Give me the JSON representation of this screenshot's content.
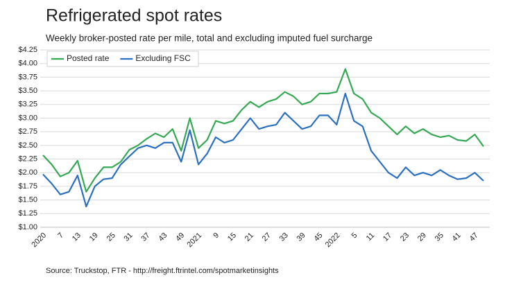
{
  "chart_data": {
    "type": "line",
    "title": "Refrigerated spot rates",
    "subtitle": "Weekly broker-posted rate per mile, total and excluding imputed fuel surcharge",
    "source": "Source: Truckstop, FTR - http://freight.ftrintel.com/spotmarketinsights",
    "categories": [
      "2020",
      null,
      "7",
      null,
      "13",
      null,
      "19",
      null,
      "25",
      null,
      "31",
      null,
      "37",
      null,
      "43",
      null,
      "49",
      null,
      "2021",
      null,
      "9",
      null,
      "15",
      null,
      "21",
      null,
      "27",
      null,
      "33",
      null,
      "39",
      null,
      "45",
      null,
      "2022",
      null,
      "5",
      null,
      "11",
      null,
      "17",
      null,
      "23",
      null,
      "29",
      null,
      "35",
      null,
      "41",
      null,
      "47",
      null
    ],
    "series": [
      {
        "name": "Posted rate",
        "color": "#34a853",
        "values": [
          2.32,
          2.15,
          1.93,
          2.0,
          2.22,
          1.65,
          1.9,
          2.1,
          2.1,
          2.2,
          2.42,
          2.5,
          2.62,
          2.72,
          2.65,
          2.8,
          2.4,
          3.0,
          2.45,
          2.6,
          2.95,
          2.9,
          2.95,
          3.15,
          3.3,
          3.2,
          3.3,
          3.35,
          3.48,
          3.4,
          3.25,
          3.3,
          3.45,
          3.45,
          3.48,
          3.9,
          3.45,
          3.35,
          3.1,
          3.0,
          2.85,
          2.7,
          2.85,
          2.72,
          2.8,
          2.7,
          2.65,
          2.68,
          2.6,
          2.58,
          2.7,
          2.48
        ]
      },
      {
        "name": "Excluding FSC",
        "color": "#2a6fc0",
        "values": [
          1.97,
          1.8,
          1.6,
          1.65,
          1.95,
          1.38,
          1.75,
          1.88,
          1.9,
          2.15,
          2.3,
          2.45,
          2.5,
          2.45,
          2.55,
          2.55,
          2.2,
          2.78,
          2.15,
          2.35,
          2.65,
          2.55,
          2.6,
          2.8,
          3.0,
          2.8,
          2.85,
          2.88,
          3.1,
          2.95,
          2.8,
          2.85,
          3.05,
          3.05,
          2.88,
          3.45,
          2.95,
          2.85,
          2.4,
          2.2,
          2.0,
          1.9,
          2.1,
          1.95,
          2.0,
          1.95,
          2.05,
          1.95,
          1.88,
          1.9,
          2.0,
          1.85
        ]
      }
    ],
    "ylim": [
      1.0,
      4.25
    ],
    "yticks": [
      {
        "value": 1.0,
        "label": "$1.00"
      },
      {
        "value": 1.25,
        "label": "$1.25"
      },
      {
        "value": 1.5,
        "label": "$1.50"
      },
      {
        "value": 1.75,
        "label": "$1.75"
      },
      {
        "value": 2.0,
        "label": "$2.00"
      },
      {
        "value": 2.25,
        "label": "$2.25"
      },
      {
        "value": 2.5,
        "label": "$2.50"
      },
      {
        "value": 2.75,
        "label": "$2.75"
      },
      {
        "value": 3.0,
        "label": "$3.00"
      },
      {
        "value": 3.25,
        "label": "$3.25"
      },
      {
        "value": 3.5,
        "label": "$3.50"
      },
      {
        "value": 3.75,
        "label": "$3.75"
      },
      {
        "value": 4.0,
        "label": "$4.00"
      },
      {
        "value": 4.25,
        "label": "$4.25"
      }
    ],
    "grid": true,
    "legend": "top-left"
  }
}
